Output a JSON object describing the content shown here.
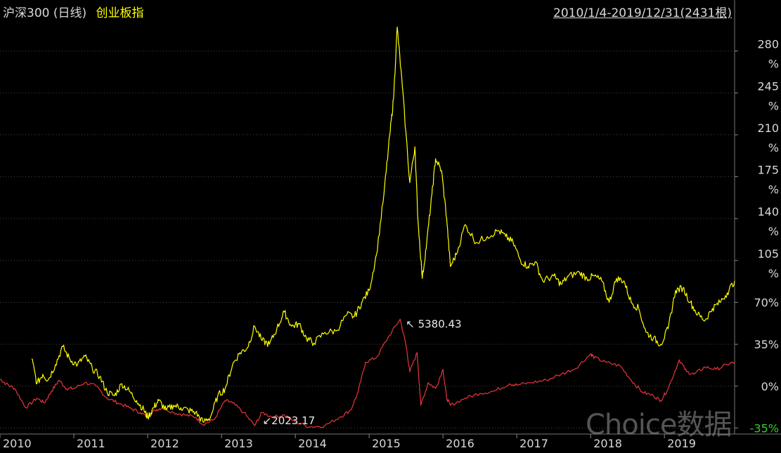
{
  "header": {
    "series_a_label": "沪深300 (日线)",
    "series_b_label": "创业板指",
    "date_range": "2010/1/4-2019/12/31(2431根)"
  },
  "watermark": "Choice数据",
  "colors": {
    "background": "#000000",
    "series_a": "#e8353a",
    "series_b": "#ffff00",
    "grid": "#444444",
    "axis_text": "#d8d8d8",
    "negative_text": "#33cc33"
  },
  "chart_data": {
    "type": "line",
    "title": "",
    "xlabel": "",
    "ylabel": "",
    "x_tick_labels": [
      "2010",
      "2011",
      "2012",
      "2013",
      "2014",
      "2015",
      "2016",
      "2017",
      "2018",
      "2019"
    ],
    "y_tick_labels": [
      "280%",
      "245%",
      "210%",
      "175%",
      "140%",
      "105%",
      "70%",
      "35%",
      "0%",
      "-35%"
    ],
    "y_tick_values": [
      280,
      245,
      210,
      175,
      140,
      105,
      70,
      35,
      0,
      -35
    ],
    "ylim": [
      -40,
      305
    ],
    "xlim": [
      2010.0,
      2019.95
    ],
    "grid": "horizontal dotted",
    "annotations": [
      {
        "text": "5380.43",
        "x": 2015.42,
        "y": 56,
        "series": "沪深300 (日线)"
      },
      {
        "text": "2023.17",
        "x": 2013.5,
        "y": -33,
        "series": "沪深300 (日线)"
      }
    ],
    "series": [
      {
        "name": "沪深300 (日线)",
        "color": "#e8353a",
        "points": [
          [
            2010.0,
            6
          ],
          [
            2010.08,
            2
          ],
          [
            2010.2,
            -2
          ],
          [
            2010.35,
            -18
          ],
          [
            2010.5,
            -10
          ],
          [
            2010.6,
            -14
          ],
          [
            2010.7,
            -4
          ],
          [
            2010.8,
            5
          ],
          [
            2010.9,
            -2
          ],
          [
            2011.0,
            -2
          ],
          [
            2011.15,
            3
          ],
          [
            2011.3,
            0
          ],
          [
            2011.45,
            -10
          ],
          [
            2011.6,
            -14
          ],
          [
            2011.75,
            -18
          ],
          [
            2011.9,
            -22
          ],
          [
            2012.0,
            -26
          ],
          [
            2012.1,
            -20
          ],
          [
            2012.2,
            -18
          ],
          [
            2012.35,
            -22
          ],
          [
            2012.5,
            -24
          ],
          [
            2012.65,
            -26
          ],
          [
            2012.75,
            -32
          ],
          [
            2012.9,
            -28
          ],
          [
            2013.05,
            -12
          ],
          [
            2013.15,
            -14
          ],
          [
            2013.3,
            -22
          ],
          [
            2013.45,
            -33
          ],
          [
            2013.55,
            -22
          ],
          [
            2013.7,
            -26
          ],
          [
            2013.85,
            -24
          ],
          [
            2014.0,
            -30
          ],
          [
            2014.2,
            -34
          ],
          [
            2014.4,
            -33
          ],
          [
            2014.6,
            -26
          ],
          [
            2014.75,
            -20
          ],
          [
            2014.85,
            -5
          ],
          [
            2014.95,
            20
          ],
          [
            2015.1,
            24
          ],
          [
            2015.25,
            40
          ],
          [
            2015.42,
            56
          ],
          [
            2015.5,
            34
          ],
          [
            2015.55,
            12
          ],
          [
            2015.65,
            28
          ],
          [
            2015.7,
            -16
          ],
          [
            2015.8,
            3
          ],
          [
            2015.9,
            -2
          ],
          [
            2016.0,
            14
          ],
          [
            2016.05,
            -10
          ],
          [
            2016.1,
            -16
          ],
          [
            2016.3,
            -10
          ],
          [
            2016.5,
            -6
          ],
          [
            2016.7,
            -4
          ],
          [
            2016.9,
            2
          ],
          [
            2017.0,
            1
          ],
          [
            2017.2,
            3
          ],
          [
            2017.4,
            5
          ],
          [
            2017.6,
            10
          ],
          [
            2017.8,
            15
          ],
          [
            2018.0,
            27
          ],
          [
            2018.05,
            24
          ],
          [
            2018.2,
            20
          ],
          [
            2018.4,
            17
          ],
          [
            2018.55,
            5
          ],
          [
            2018.7,
            -5
          ],
          [
            2018.85,
            -8
          ],
          [
            2018.95,
            -12
          ],
          [
            2019.05,
            -2
          ],
          [
            2019.2,
            22
          ],
          [
            2019.3,
            12
          ],
          [
            2019.4,
            10
          ],
          [
            2019.55,
            16
          ],
          [
            2019.7,
            14
          ],
          [
            2019.85,
            18
          ],
          [
            2019.95,
            20
          ]
        ]
      },
      {
        "name": "创业板指",
        "color": "#ffff00",
        "points": [
          [
            2010.43,
            23
          ],
          [
            2010.5,
            2
          ],
          [
            2010.58,
            10
          ],
          [
            2010.65,
            5
          ],
          [
            2010.75,
            18
          ],
          [
            2010.85,
            33
          ],
          [
            2010.95,
            22
          ],
          [
            2011.05,
            18
          ],
          [
            2011.15,
            25
          ],
          [
            2011.25,
            15
          ],
          [
            2011.35,
            8
          ],
          [
            2011.45,
            -5
          ],
          [
            2011.55,
            -8
          ],
          [
            2011.65,
            2
          ],
          [
            2011.75,
            -4
          ],
          [
            2011.85,
            -12
          ],
          [
            2011.95,
            -20
          ],
          [
            2012.0,
            -26
          ],
          [
            2012.08,
            -18
          ],
          [
            2012.15,
            -12
          ],
          [
            2012.25,
            -20
          ],
          [
            2012.35,
            -16
          ],
          [
            2012.45,
            -18
          ],
          [
            2012.55,
            -20
          ],
          [
            2012.65,
            -22
          ],
          [
            2012.75,
            -30
          ],
          [
            2012.85,
            -26
          ],
          [
            2012.95,
            -8
          ],
          [
            2013.05,
            -2
          ],
          [
            2013.15,
            18
          ],
          [
            2013.25,
            28
          ],
          [
            2013.35,
            32
          ],
          [
            2013.45,
            50
          ],
          [
            2013.55,
            38
          ],
          [
            2013.65,
            35
          ],
          [
            2013.75,
            48
          ],
          [
            2013.85,
            62
          ],
          [
            2013.95,
            50
          ],
          [
            2014.05,
            52
          ],
          [
            2014.15,
            40
          ],
          [
            2014.25,
            36
          ],
          [
            2014.4,
            45
          ],
          [
            2014.55,
            46
          ],
          [
            2014.7,
            60
          ],
          [
            2014.8,
            58
          ],
          [
            2014.9,
            70
          ],
          [
            2015.0,
            80
          ],
          [
            2015.1,
            110
          ],
          [
            2015.2,
            160
          ],
          [
            2015.28,
            210
          ],
          [
            2015.33,
            240
          ],
          [
            2015.38,
            300
          ],
          [
            2015.45,
            250
          ],
          [
            2015.55,
            170
          ],
          [
            2015.62,
            200
          ],
          [
            2015.66,
            140
          ],
          [
            2015.72,
            90
          ],
          [
            2015.78,
            120
          ],
          [
            2015.85,
            160
          ],
          [
            2015.9,
            190
          ],
          [
            2015.98,
            180
          ],
          [
            2016.05,
            140
          ],
          [
            2016.1,
            100
          ],
          [
            2016.18,
            110
          ],
          [
            2016.3,
            135
          ],
          [
            2016.45,
            120
          ],
          [
            2016.6,
            125
          ],
          [
            2016.75,
            130
          ],
          [
            2016.85,
            125
          ],
          [
            2016.95,
            120
          ],
          [
            2017.05,
            105
          ],
          [
            2017.15,
            100
          ],
          [
            2017.25,
            104
          ],
          [
            2017.35,
            88
          ],
          [
            2017.5,
            92
          ],
          [
            2017.6,
            85
          ],
          [
            2017.7,
            92
          ],
          [
            2017.85,
            95
          ],
          [
            2017.95,
            90
          ],
          [
            2018.05,
            92
          ],
          [
            2018.15,
            88
          ],
          [
            2018.25,
            70
          ],
          [
            2018.35,
            90
          ],
          [
            2018.45,
            88
          ],
          [
            2018.55,
            70
          ],
          [
            2018.65,
            65
          ],
          [
            2018.75,
            45
          ],
          [
            2018.85,
            40
          ],
          [
            2018.95,
            35
          ],
          [
            2019.05,
            48
          ],
          [
            2019.15,
            80
          ],
          [
            2019.25,
            82
          ],
          [
            2019.35,
            70
          ],
          [
            2019.45,
            60
          ],
          [
            2019.55,
            55
          ],
          [
            2019.65,
            65
          ],
          [
            2019.75,
            70
          ],
          [
            2019.85,
            78
          ],
          [
            2019.95,
            88
          ]
        ]
      }
    ]
  }
}
